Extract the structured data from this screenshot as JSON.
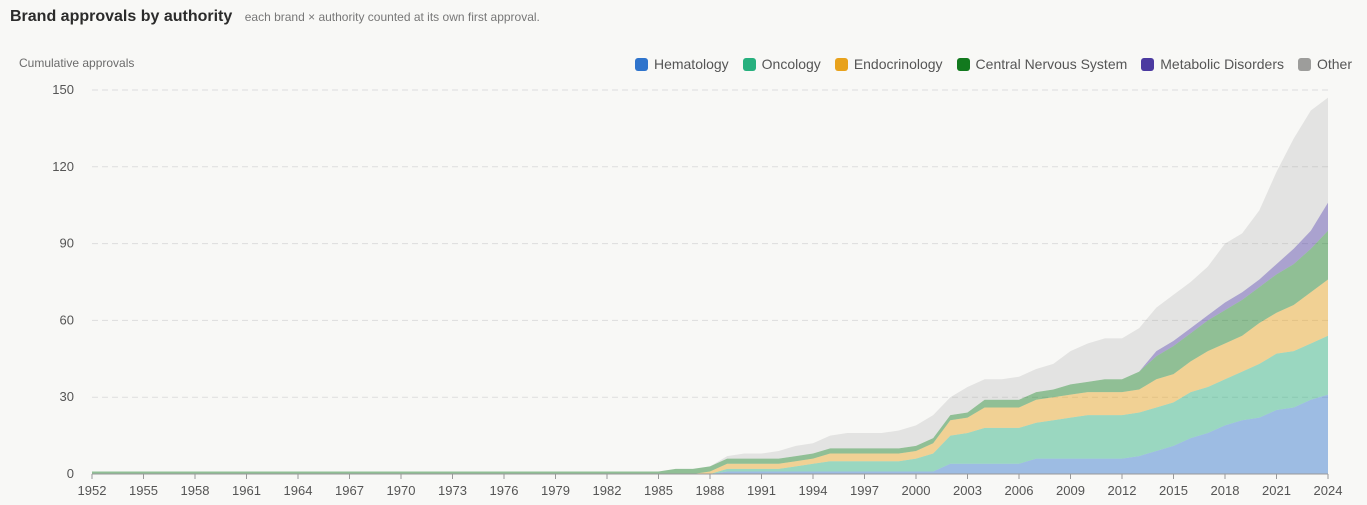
{
  "header": {
    "title": "Brand approvals by authority",
    "subtitle": "each brand × authority counted at its own first approval."
  },
  "legend": [
    {
      "name": "Hematology",
      "color": "#2f74cc"
    },
    {
      "name": "Oncology",
      "color": "#27b07e"
    },
    {
      "name": "Endocrinology",
      "color": "#e8a21c"
    },
    {
      "name": "Central Nervous System",
      "color": "#12791e"
    },
    {
      "name": "Metabolic Disorders",
      "color": "#4b3aa0"
    },
    {
      "name": "Other",
      "color": "#9d9d9b"
    }
  ],
  "chart_data": {
    "type": "area",
    "stacked": true,
    "title": "Brand approvals by authority",
    "subtitle": "each brand × authority counted at its own first approval.",
    "xlabel": "",
    "ylabel": "Cumulative approvals",
    "ylim": [
      0,
      150
    ],
    "yticks": [
      0,
      30,
      60,
      90,
      120,
      150
    ],
    "xticks": [
      1952,
      1955,
      1958,
      1961,
      1964,
      1967,
      1970,
      1973,
      1976,
      1979,
      1982,
      1985,
      1988,
      1991,
      1994,
      1997,
      2000,
      2003,
      2006,
      2009,
      2012,
      2015,
      2018,
      2021,
      2024
    ],
    "grid": true,
    "legend_position": "top-right",
    "x": [
      1952,
      1985,
      1986,
      1987,
      1988,
      1989,
      1990,
      1991,
      1992,
      1993,
      1994,
      1995,
      1996,
      1997,
      1998,
      1999,
      2000,
      2001,
      2002,
      2003,
      2004,
      2005,
      2006,
      2007,
      2008,
      2009,
      2010,
      2011,
      2012,
      2013,
      2014,
      2015,
      2016,
      2017,
      2018,
      2019,
      2020,
      2021,
      2022,
      2023,
      2024
    ],
    "series": [
      {
        "name": "Hematology",
        "color": "#2f74cc",
        "values": [
          0,
          0,
          0,
          0,
          0,
          1,
          1,
          1,
          1,
          1,
          1,
          1,
          1,
          1,
          1,
          1,
          1,
          1,
          4,
          4,
          4,
          4,
          4,
          6,
          6,
          6,
          6,
          6,
          6,
          7,
          9,
          11,
          14,
          16,
          19,
          21,
          22,
          25,
          26,
          29,
          31
        ]
      },
      {
        "name": "Oncology",
        "color": "#27b07e",
        "values": [
          0,
          0,
          0,
          0,
          0,
          1,
          1,
          1,
          1,
          2,
          3,
          4,
          4,
          4,
          4,
          4,
          5,
          7,
          11,
          12,
          14,
          14,
          14,
          14,
          15,
          16,
          17,
          17,
          17,
          17,
          17,
          17,
          18,
          18,
          18,
          19,
          21,
          22,
          22,
          22,
          23
        ]
      },
      {
        "name": "Endocrinology",
        "color": "#e8a21c",
        "values": [
          0,
          0,
          0,
          0,
          1,
          2,
          2,
          2,
          2,
          2,
          2,
          3,
          3,
          3,
          3,
          3,
          3,
          4,
          6,
          6,
          8,
          8,
          8,
          9,
          9,
          9,
          9,
          9,
          9,
          9,
          11,
          11,
          12,
          14,
          14,
          14,
          16,
          16,
          18,
          20,
          22
        ]
      },
      {
        "name": "Central Nervous System",
        "color": "#12791e",
        "values": [
          1,
          1,
          2,
          2,
          2,
          2,
          2,
          2,
          2,
          2,
          2,
          2,
          2,
          2,
          2,
          2,
          2,
          2,
          2,
          2,
          3,
          3,
          3,
          3,
          3,
          4,
          4,
          5,
          5,
          7,
          9,
          11,
          11,
          12,
          13,
          14,
          14,
          15,
          16,
          17,
          19
        ]
      },
      {
        "name": "Metabolic Disorders",
        "color": "#4b3aa0",
        "values": [
          0,
          0,
          0,
          0,
          0,
          0,
          0,
          0,
          0,
          0,
          0,
          0,
          0,
          0,
          0,
          0,
          0,
          0,
          0,
          0,
          0,
          0,
          0,
          0,
          0,
          0,
          0,
          0,
          0,
          0,
          2,
          2,
          2,
          2,
          3,
          3,
          3,
          4,
          6,
          7,
          11
        ]
      },
      {
        "name": "Other",
        "color": "#9d9d9b",
        "values": [
          0,
          0,
          0,
          0,
          0,
          1,
          2,
          2,
          3,
          4,
          4,
          5,
          6,
          6,
          6,
          7,
          8,
          9,
          7,
          10,
          8,
          8,
          9,
          9,
          10,
          13,
          15,
          16,
          16,
          17,
          17,
          18,
          18,
          19,
          23,
          23,
          27,
          36,
          43,
          47,
          41
        ]
      }
    ]
  }
}
